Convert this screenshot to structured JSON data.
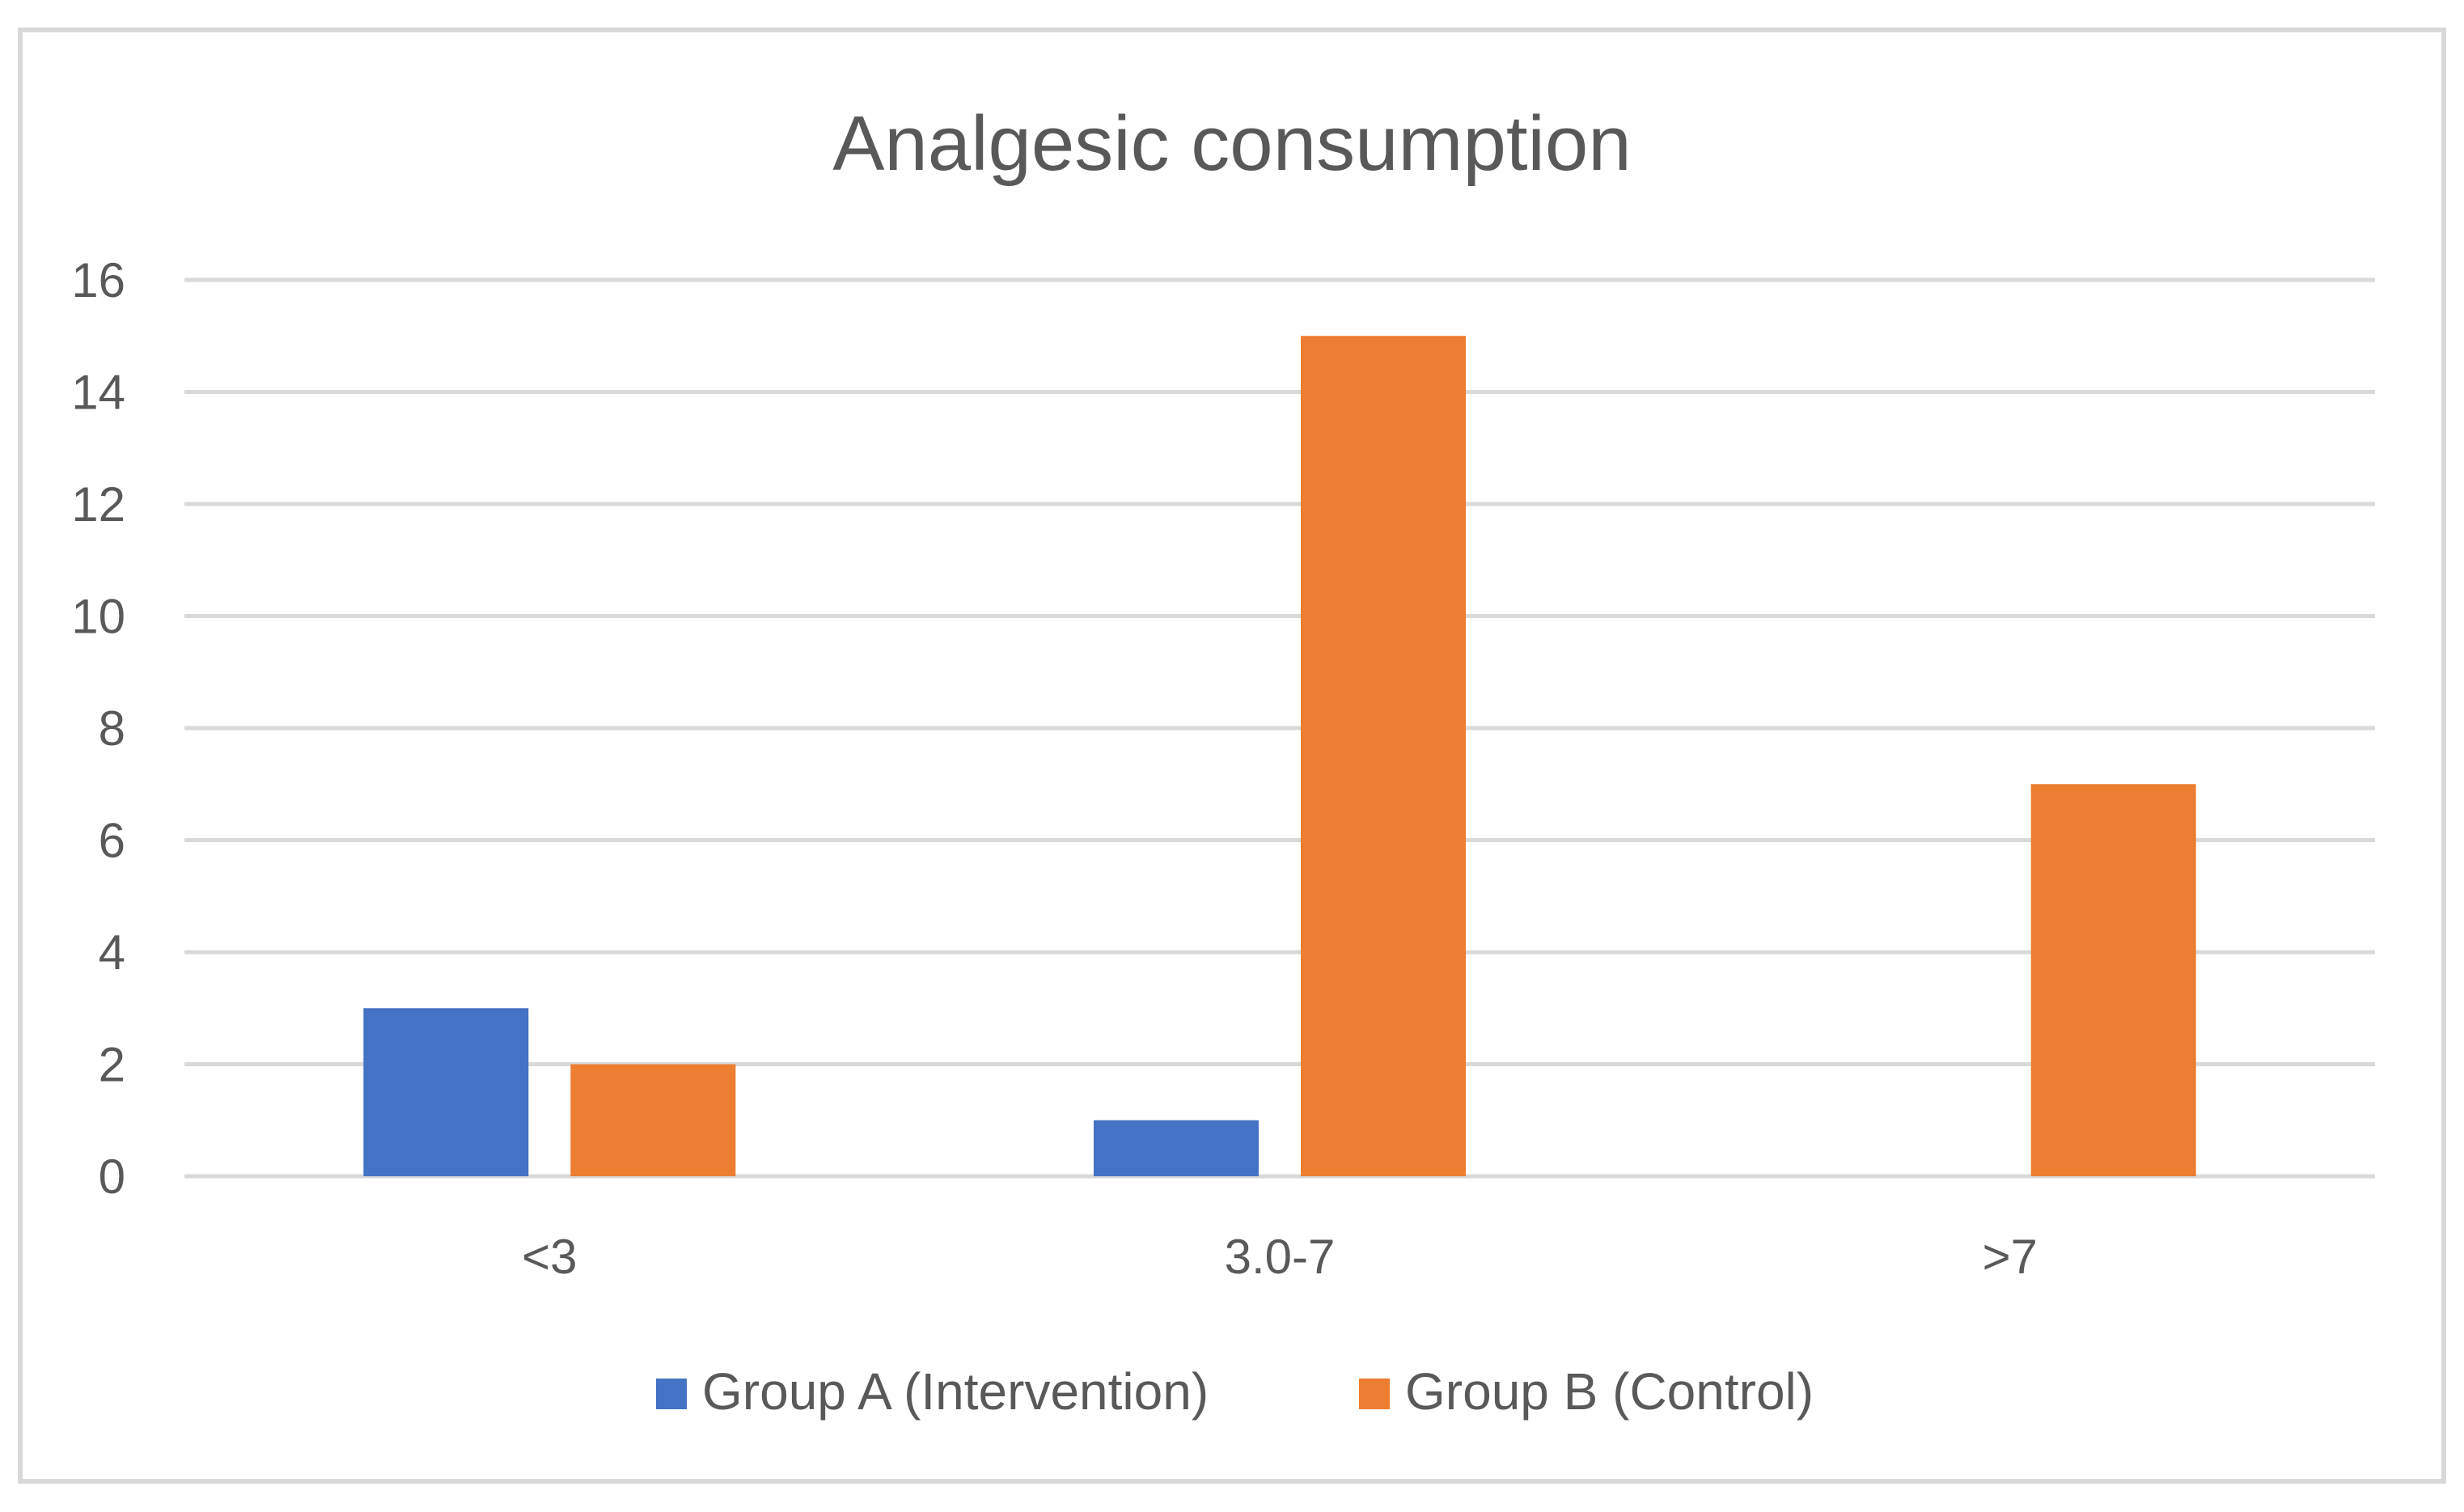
{
  "chart_data": {
    "type": "bar",
    "title": "Analgesic consumption",
    "categories": [
      "<3",
      "3.0-7",
      ">7"
    ],
    "series": [
      {
        "name": "Group A (Intervention)",
        "color": "#4472c4",
        "values": [
          3,
          1,
          0
        ]
      },
      {
        "name": "Group B (Control)",
        "color": "#ed7d31",
        "values": [
          2,
          15,
          7
        ]
      }
    ],
    "y_ticks": [
      "0",
      "2",
      "4",
      "6",
      "8",
      "10",
      "12",
      "14",
      "16"
    ],
    "ylim": [
      0,
      16
    ],
    "xlabel": "",
    "ylabel": "",
    "grid": true,
    "legend_position": "bottom"
  }
}
